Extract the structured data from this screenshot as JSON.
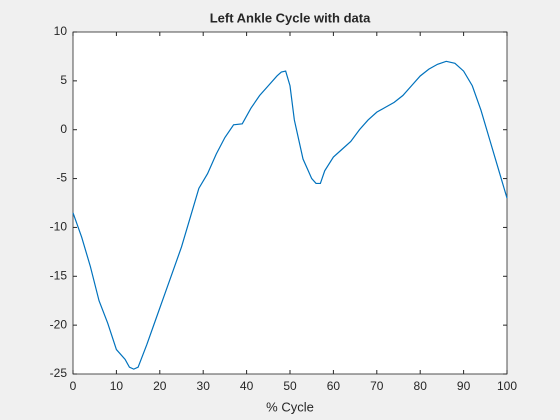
{
  "chart_data": {
    "type": "line",
    "title": "Left Ankle Cycle with data",
    "xlabel": "% Cycle",
    "x": [
      0,
      2,
      4,
      6,
      8,
      10,
      12,
      13,
      14,
      15,
      17,
      19,
      21,
      23,
      25,
      27,
      29,
      31,
      33,
      35,
      37,
      39,
      41,
      43,
      45,
      47,
      48,
      49,
      50,
      51,
      52,
      53,
      54,
      55,
      56,
      57,
      58,
      60,
      62,
      64,
      66,
      68,
      70,
      72,
      74,
      76,
      78,
      80,
      82,
      84,
      86,
      88,
      90,
      92,
      94,
      96,
      98,
      100
    ],
    "series": [
      {
        "color": "#0072bd",
        "values": [
          -8.5,
          -11,
          -14,
          -17.5,
          -19.8,
          -22.5,
          -23.5,
          -24.3,
          -24.5,
          -24.3,
          -22,
          -19.5,
          -17,
          -14.5,
          -12,
          -9,
          -6,
          -4.5,
          -2.5,
          -0.8,
          0.5,
          0.6,
          2.2,
          3.5,
          4.5,
          5.5,
          5.9,
          6,
          4.5,
          1,
          -1,
          -3,
          -4,
          -5,
          -5.5,
          -5.5,
          -4.2,
          -2.8,
          -2,
          -1.2,
          0,
          1,
          1.8,
          2.3,
          2.8,
          3.5,
          4.5,
          5.5,
          6.2,
          6.7,
          7,
          6.8,
          6,
          4.5,
          2,
          -1,
          -4,
          -7
        ]
      }
    ],
    "xlim": [
      0,
      100
    ],
    "xticks": [
      0,
      10,
      20,
      30,
      40,
      50,
      60,
      70,
      80,
      90,
      100
    ],
    "ylim": [
      -25,
      10
    ],
    "yticks": [
      -25,
      -20,
      -15,
      -10,
      -5,
      0,
      5,
      10
    ]
  }
}
